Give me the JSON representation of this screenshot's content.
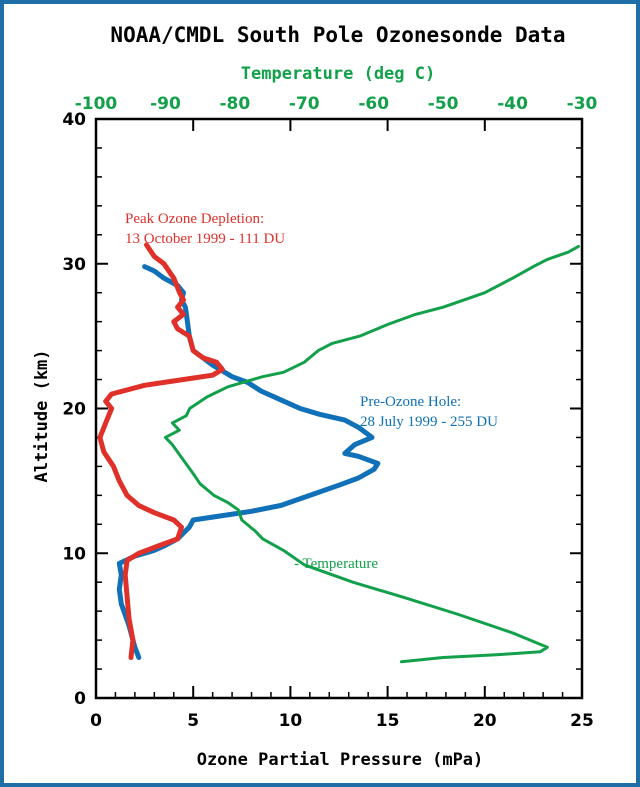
{
  "chart_data": {
    "type": "line",
    "title": "NOAA/CMDL South Pole Ozonesonde Data",
    "xlabel": "Ozone Partial Pressure (mPa)",
    "ylabel": "Altitude (km)",
    "xlim": [
      0,
      25
    ],
    "ylim": [
      0,
      40
    ],
    "xticks": [
      "0",
      "5",
      "10",
      "15",
      "20",
      "25"
    ],
    "yticks": [
      "0",
      "10",
      "20",
      "30",
      "40"
    ],
    "top_axis": {
      "label": "Temperature (deg C)",
      "range": [
        -100,
        -30
      ],
      "ticks": [
        "-100",
        "-90",
        "-80",
        "-70",
        "-60",
        "-50",
        "-40",
        "-30"
      ],
      "color": "#12a04a"
    },
    "grid": false,
    "series": [
      {
        "name": "Peak Ozone Depletion",
        "label_lines": [
          "Peak Ozone Depletion:",
          "13 October 1999 - 111 DU"
        ],
        "color": "#e0302a",
        "axis": "bottom",
        "points": [
          [
            1.8,
            2.8
          ],
          [
            1.9,
            4.0
          ],
          [
            1.7,
            5.5
          ],
          [
            1.6,
            7.0
          ],
          [
            1.5,
            8.5
          ],
          [
            1.6,
            9.5
          ],
          [
            2.2,
            10.0
          ],
          [
            3.2,
            10.5
          ],
          [
            4.2,
            11.0
          ],
          [
            4.4,
            11.8
          ],
          [
            4.0,
            12.3
          ],
          [
            3.0,
            12.8
          ],
          [
            2.2,
            13.3
          ],
          [
            1.6,
            14.0
          ],
          [
            1.2,
            15.0
          ],
          [
            0.9,
            16.0
          ],
          [
            0.4,
            17.0
          ],
          [
            0.2,
            18.0
          ],
          [
            0.5,
            19.0
          ],
          [
            0.8,
            20.0
          ],
          [
            0.5,
            20.5
          ],
          [
            0.8,
            21.0
          ],
          [
            2.5,
            21.6
          ],
          [
            4.5,
            22.0
          ],
          [
            6.0,
            22.3
          ],
          [
            6.5,
            22.7
          ],
          [
            6.2,
            23.2
          ],
          [
            5.5,
            23.5
          ],
          [
            5.0,
            24.0
          ],
          [
            4.8,
            25.0
          ],
          [
            4.2,
            25.5
          ],
          [
            4.0,
            26.0
          ],
          [
            4.5,
            26.5
          ],
          [
            4.2,
            27.0
          ],
          [
            4.5,
            27.5
          ],
          [
            4.3,
            28.0
          ],
          [
            4.0,
            29.0
          ],
          [
            3.5,
            30.0
          ],
          [
            3.0,
            30.5
          ],
          [
            2.6,
            31.3
          ]
        ]
      },
      {
        "name": "Pre-Ozone Hole",
        "label_lines": [
          "Pre-Ozone Hole:",
          "28 July 1999 - 255 DU"
        ],
        "color": "#1070b8",
        "axis": "bottom",
        "points": [
          [
            2.2,
            2.8
          ],
          [
            2.0,
            3.5
          ],
          [
            1.7,
            5.0
          ],
          [
            1.3,
            6.5
          ],
          [
            1.2,
            7.5
          ],
          [
            1.3,
            8.5
          ],
          [
            1.2,
            9.3
          ],
          [
            2.0,
            9.8
          ],
          [
            3.0,
            10.2
          ],
          [
            3.5,
            10.5
          ],
          [
            4.2,
            11.0
          ],
          [
            4.8,
            11.8
          ],
          [
            5.0,
            12.3
          ],
          [
            6.5,
            12.6
          ],
          [
            8.0,
            12.9
          ],
          [
            9.5,
            13.3
          ],
          [
            11.0,
            14.0
          ],
          [
            12.5,
            14.7
          ],
          [
            13.5,
            15.2
          ],
          [
            14.3,
            15.8
          ],
          [
            14.5,
            16.2
          ],
          [
            13.5,
            16.7
          ],
          [
            12.8,
            16.9
          ],
          [
            13.3,
            17.5
          ],
          [
            14.2,
            18.0
          ],
          [
            13.5,
            18.7
          ],
          [
            12.8,
            19.2
          ],
          [
            11.5,
            19.6
          ],
          [
            10.5,
            20.0
          ],
          [
            9.5,
            20.6
          ],
          [
            8.5,
            21.2
          ],
          [
            7.8,
            21.8
          ],
          [
            7.0,
            22.2
          ],
          [
            6.5,
            22.6
          ],
          [
            6.0,
            23.0
          ],
          [
            5.5,
            23.5
          ],
          [
            5.0,
            24.0
          ],
          [
            4.8,
            25.0
          ],
          [
            4.7,
            26.0
          ],
          [
            4.6,
            27.0
          ],
          [
            4.4,
            27.5
          ],
          [
            4.5,
            28.0
          ],
          [
            4.2,
            28.5
          ],
          [
            3.5,
            29.0
          ],
          [
            3.0,
            29.5
          ],
          [
            2.5,
            29.8
          ]
        ]
      },
      {
        "name": "Temperature",
        "label_lines": [
          "- Temperature"
        ],
        "color": "#12a04a",
        "axis": "top",
        "points": [
          [
            -56.0,
            2.5
          ],
          [
            -50.0,
            2.8
          ],
          [
            -42.0,
            3.0
          ],
          [
            -36.0,
            3.2
          ],
          [
            -35.0,
            3.5
          ],
          [
            -40.0,
            4.5
          ],
          [
            -48.0,
            5.8
          ],
          [
            -56.0,
            7.0
          ],
          [
            -63.0,
            8.0
          ],
          [
            -70.0,
            9.2
          ],
          [
            -73.0,
            10.2
          ],
          [
            -76.0,
            11.0
          ],
          [
            -77.0,
            11.5
          ],
          [
            -79.0,
            12.3
          ],
          [
            -79.5,
            13.0
          ],
          [
            -81.0,
            13.5
          ],
          [
            -83.0,
            14.0
          ],
          [
            -85.0,
            14.8
          ],
          [
            -86.0,
            15.5
          ],
          [
            -87.5,
            16.5
          ],
          [
            -89.0,
            17.5
          ],
          [
            -90.0,
            18.0
          ],
          [
            -88.0,
            18.5
          ],
          [
            -89.0,
            19.0
          ],
          [
            -87.0,
            19.5
          ],
          [
            -86.5,
            20.0
          ],
          [
            -84.0,
            20.8
          ],
          [
            -81.0,
            21.5
          ],
          [
            -76.0,
            22.2
          ],
          [
            -73.0,
            22.5
          ],
          [
            -70.0,
            23.2
          ],
          [
            -68.0,
            24.0
          ],
          [
            -66.0,
            24.5
          ],
          [
            -62.0,
            25.0
          ],
          [
            -58.0,
            25.8
          ],
          [
            -54.0,
            26.5
          ],
          [
            -50.0,
            27.0
          ],
          [
            -47.0,
            27.5
          ],
          [
            -44.0,
            28.0
          ],
          [
            -40.0,
            29.0
          ],
          [
            -37.0,
            29.8
          ],
          [
            -35.0,
            30.3
          ],
          [
            -32.0,
            30.8
          ],
          [
            -30.5,
            31.2
          ]
        ]
      }
    ]
  }
}
